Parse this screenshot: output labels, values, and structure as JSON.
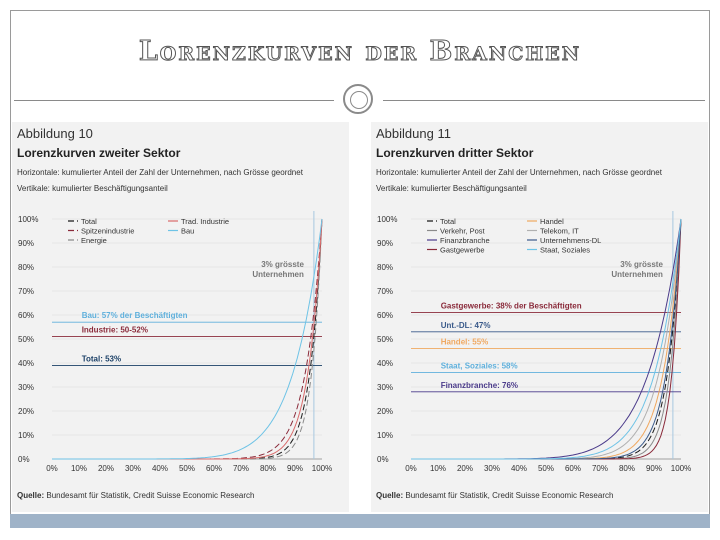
{
  "slide": {
    "title": "Lorenzkurven der Branchen"
  },
  "panels": [
    {
      "figure_label": "Abbildung 10",
      "subtitle": "Lorenzkurven zweiter Sektor",
      "desc_h": "Horizontale: kumulierter Anteil der Zahl der Unternehmen, nach Grösse geordnet",
      "desc_v": "Vertikale: kumulierter Beschäftigungsanteil",
      "source_label": "Quelle:",
      "source_text": "Bundesamt für Statistik, Credit Suisse Economic Research"
    },
    {
      "figure_label": "Abbildung 11",
      "subtitle": "Lorenzkurven dritter Sektor",
      "desc_h": "Horizontale: kumulierter Anteil der Zahl der Unternehmen, nach Grösse geordnet",
      "desc_v": "Vertikale: kumulierter Beschäftigungsanteil",
      "source_label": "Quelle:",
      "source_text": "Bundesamt für Statistik, Credit Suisse Economic Research"
    }
  ],
  "chart_data": [
    {
      "type": "line",
      "title": "Lorenzkurven zweiter Sektor",
      "xlabel": "Horizontale: kumulierter Anteil der Zahl der Unternehmen, nach Grösse geordnet",
      "ylabel": "Vertikale: kumulierter Beschäftigungsanteil",
      "xlim": [
        0,
        100
      ],
      "ylim": [
        0,
        100
      ],
      "x_ticks": [
        "0%",
        "10%",
        "20%",
        "30%",
        "40%",
        "50%",
        "60%",
        "70%",
        "80%",
        "90%",
        "100%"
      ],
      "y_ticks": [
        "0%",
        "10%",
        "20%",
        "30%",
        "40%",
        "50%",
        "60%",
        "70%",
        "80%",
        "90%",
        "100%"
      ],
      "legend_position": "top-left",
      "legend_columns": 2,
      "series": [
        {
          "name": "Total",
          "color": "#1a1a1a",
          "dash": "6,3",
          "curvature": 22
        },
        {
          "name": "Spitzenindustrie",
          "color": "#8a2a3a",
          "dash": "6,3",
          "curvature": 16
        },
        {
          "name": "Energie",
          "color": "#8a8a8a",
          "dash": "6,3",
          "curvature": 26
        },
        {
          "name": "Trad. Industrie",
          "color": "#d96a6a",
          "dash": "",
          "curvature": 19
        },
        {
          "name": "Bau",
          "color": "#6ec3e6",
          "dash": "",
          "curvature": 9
        }
      ],
      "reference_lines": [
        {
          "y": 57,
          "label": "Bau: 57% der Beschäftigten",
          "color": "#5fb0dc"
        },
        {
          "y": 51,
          "label": "Industrie: 50-52%",
          "color": "#8a2a3a"
        },
        {
          "y": 39,
          "label": "Total: 53%",
          "color": "#1a3f66"
        }
      ],
      "vertical_line": {
        "x": 97,
        "color": "#a8c8e0"
      },
      "annotation": "3% grösste Unternehmen"
    },
    {
      "type": "line",
      "title": "Lorenzkurven dritter Sektor",
      "xlabel": "Horizontale: kumulierter Anteil der Zahl der Unternehmen, nach Grösse geordnet",
      "ylabel": "Vertikale: kumulierter Beschäftigungsanteil",
      "xlim": [
        0,
        100
      ],
      "ylim": [
        0,
        100
      ],
      "x_ticks": [
        "0%",
        "10%",
        "20%",
        "30%",
        "40%",
        "50%",
        "60%",
        "70%",
        "80%",
        "90%",
        "100%"
      ],
      "y_ticks": [
        "0%",
        "10%",
        "20%",
        "30%",
        "40%",
        "50%",
        "60%",
        "70%",
        "80%",
        "90%",
        "100%"
      ],
      "legend_position": "top-left",
      "legend_columns": 2,
      "series": [
        {
          "name": "Total",
          "color": "#1a1a1a",
          "dash": "6,3",
          "curvature": 20
        },
        {
          "name": "Verkehr, Post",
          "color": "#8a8a8a",
          "dash": "",
          "curvature": 24
        },
        {
          "name": "Finanzbranche",
          "color": "#4a3a8a",
          "dash": "",
          "curvature": 8
        },
        {
          "name": "Gastgewerbe",
          "color": "#8a2a3a",
          "dash": "",
          "curvature": 30
        },
        {
          "name": "Handel",
          "color": "#f0a860",
          "dash": "",
          "curvature": 15
        },
        {
          "name": "Telekom, IT",
          "color": "#b0b0b0",
          "dash": "",
          "curvature": 12
        },
        {
          "name": "Unternehmens-DL",
          "color": "#3a5a8a",
          "dash": "",
          "curvature": 18
        },
        {
          "name": "Staat, Soziales",
          "color": "#6ec3e6",
          "dash": "",
          "curvature": 10
        }
      ],
      "reference_lines": [
        {
          "y": 61,
          "label": "Gastgewerbe: 38% der Beschäftigten",
          "color": "#8a2a3a"
        },
        {
          "y": 53,
          "label": "Unt.-DL: 47%",
          "color": "#3a5a8a"
        },
        {
          "y": 46,
          "label": "Handel: 55%",
          "color": "#f0a860"
        },
        {
          "y": 36,
          "label": "Staat, Soziales: 58%",
          "color": "#5fb0dc"
        },
        {
          "y": 28,
          "label": "Finanzbranche: 76%",
          "color": "#4a3a8a"
        }
      ],
      "vertical_line": {
        "x": 97,
        "color": "#a8c8e0"
      },
      "annotation": "3% grösste Unternehmen"
    }
  ]
}
